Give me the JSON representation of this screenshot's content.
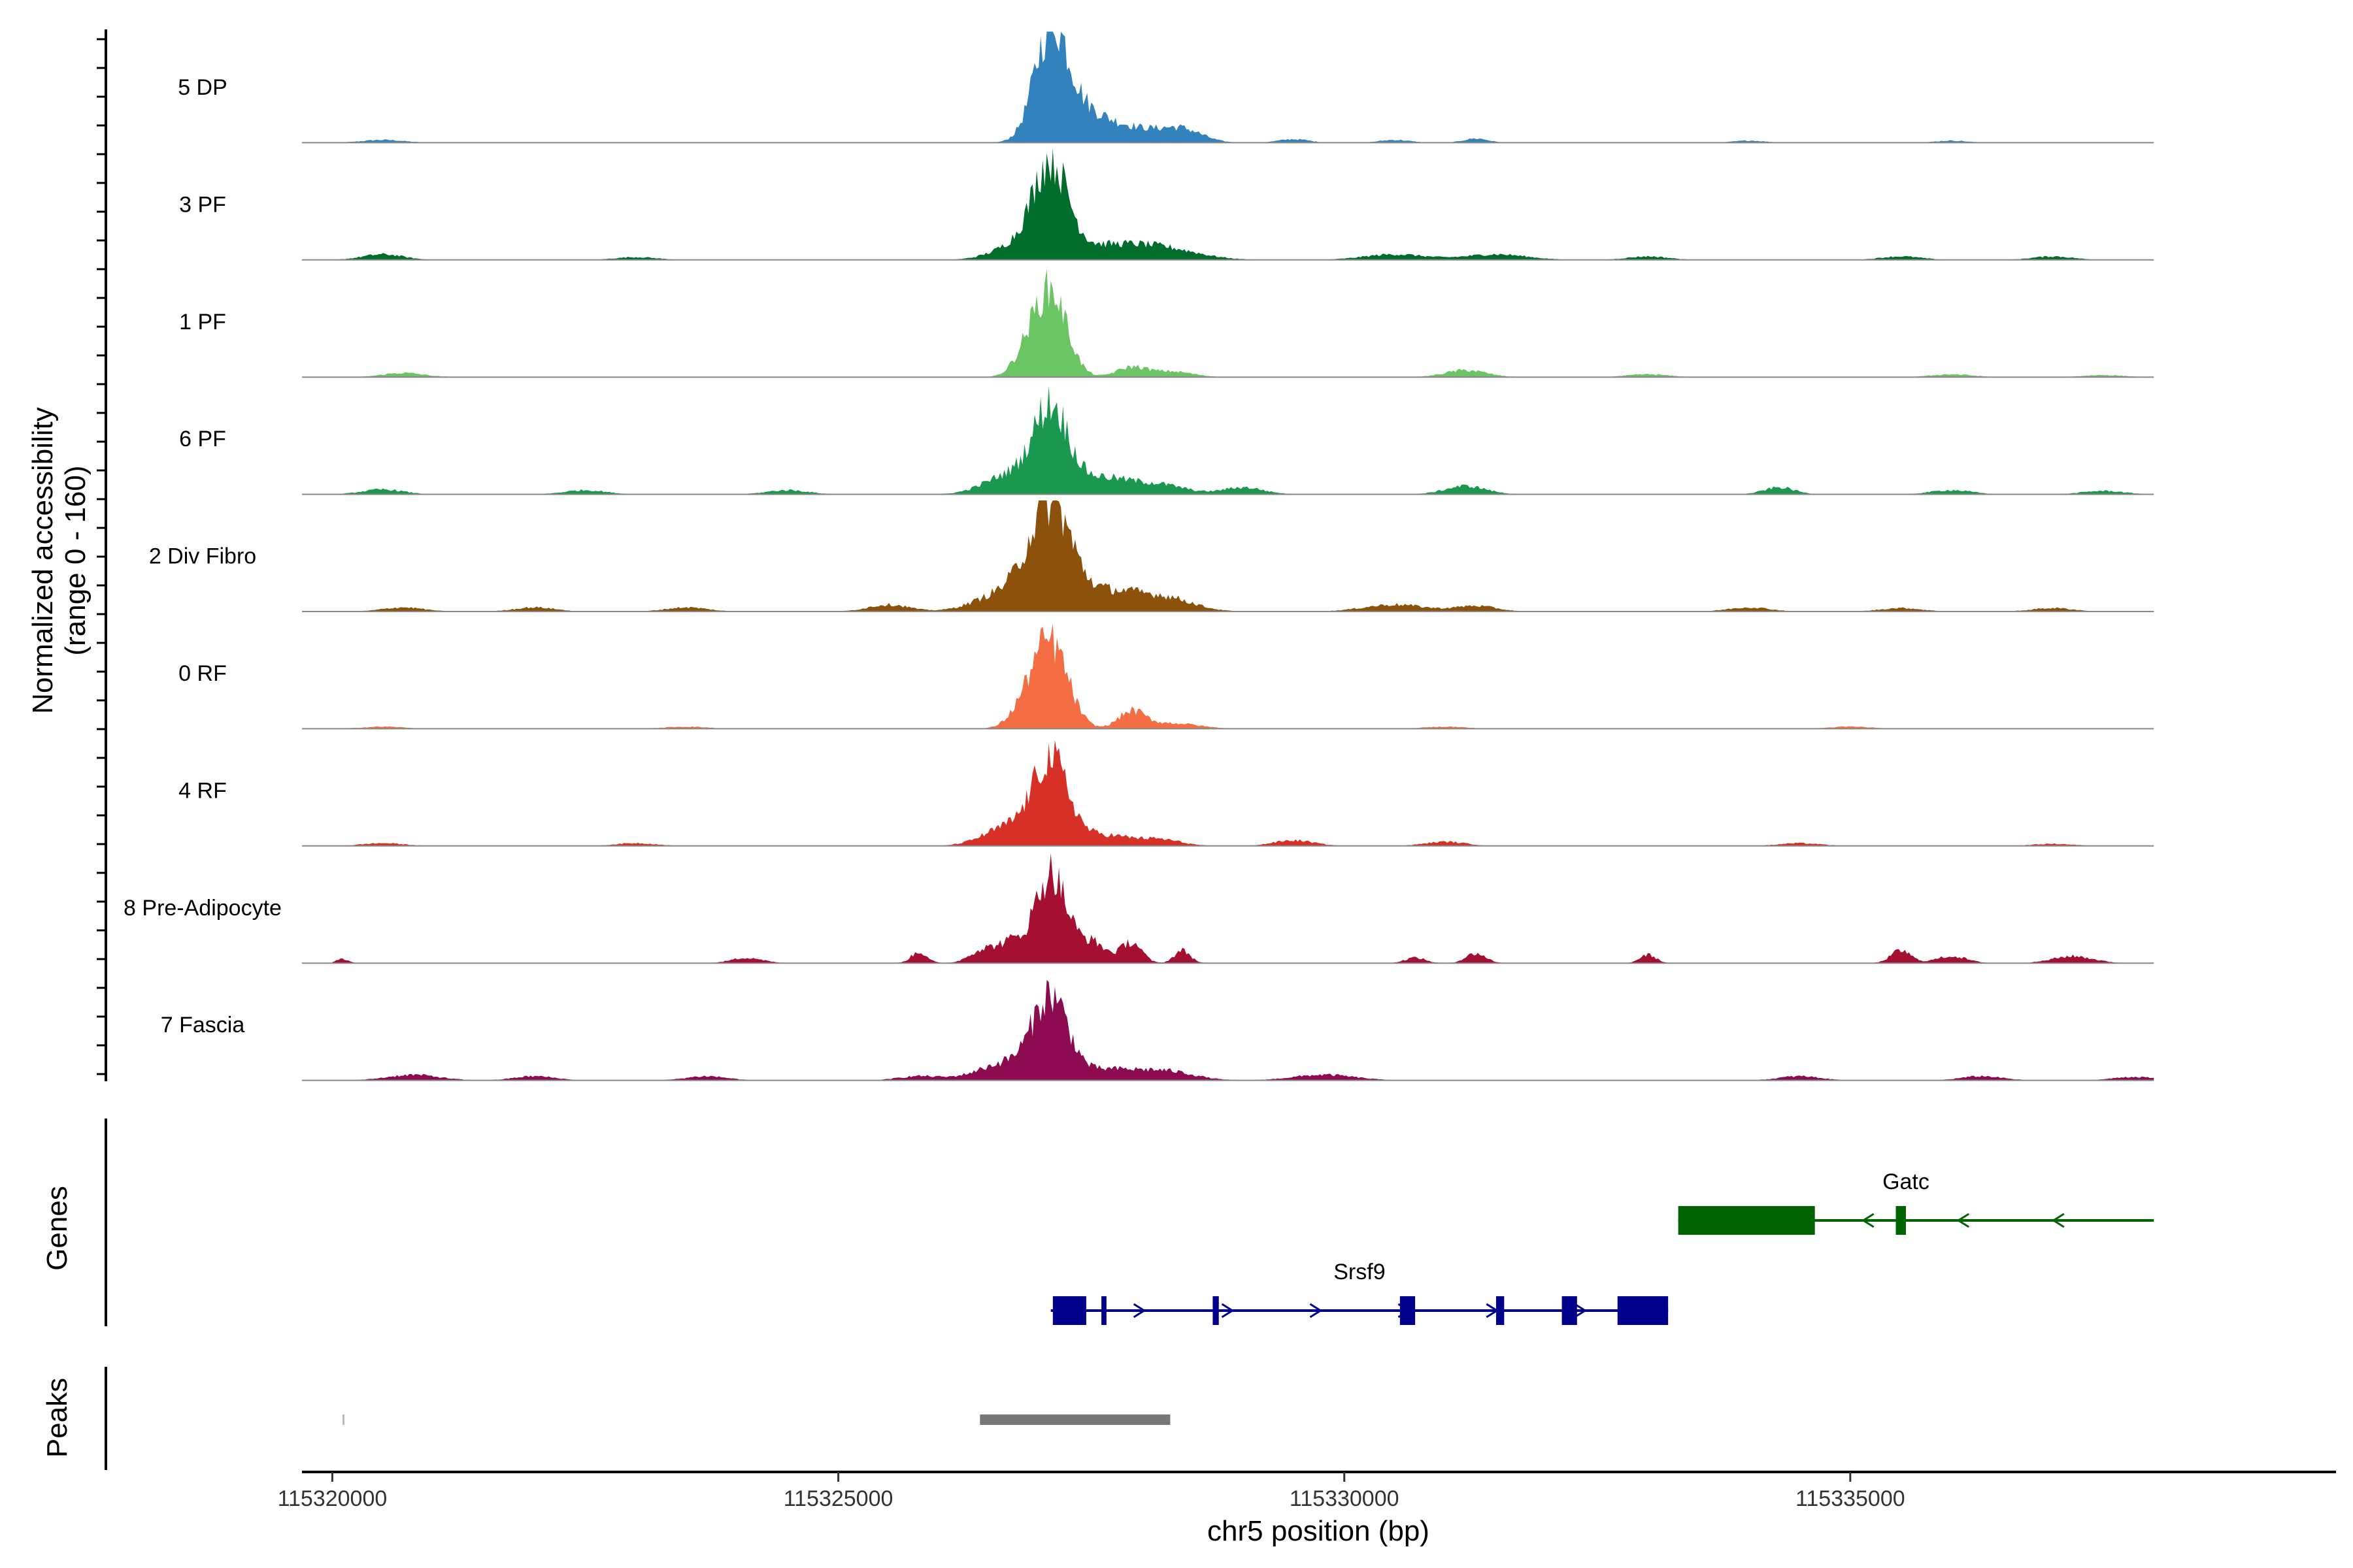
{
  "chart_data": {
    "type": "area",
    "chromosome": "chr5",
    "xlabel": "chr5 position (bp)",
    "ylabel_line1": "Normalized accessibility",
    "ylabel_line2": "(range 0 - 160)",
    "ylim": [
      0,
      160
    ],
    "xlim": [
      115319700,
      115339800
    ],
    "x_ticks": [
      115320000,
      115325000,
      115330000,
      115335000
    ],
    "x_tick_labels": [
      "115320000",
      "115325000",
      "115330000",
      "115335000"
    ],
    "region": [
      115320000,
      115338000
    ],
    "tracks": [
      {
        "name": "5 DP",
        "color": "#3182BD",
        "peaks": [
          [
            115327100,
            148,
            160
          ],
          [
            115327350,
            40,
            250
          ],
          [
            115327700,
            14,
            300
          ],
          [
            115328000,
            10,
            250
          ],
          [
            115328400,
            18,
            200
          ],
          [
            115329500,
            5,
            150
          ],
          [
            115330500,
            4,
            150
          ],
          [
            115331300,
            6,
            120
          ],
          [
            115334000,
            3,
            150
          ],
          [
            115336000,
            3,
            150
          ],
          [
            115320500,
            4,
            200
          ]
        ]
      },
      {
        "name": "3 PF",
        "color": "#006D2C",
        "peaks": [
          [
            115327100,
            128,
            170
          ],
          [
            115326800,
            22,
            250
          ],
          [
            115327600,
            18,
            350
          ],
          [
            115328200,
            16,
            350
          ],
          [
            115320500,
            8,
            200
          ],
          [
            115330500,
            8,
            300
          ],
          [
            115331500,
            8,
            300
          ],
          [
            115333000,
            5,
            200
          ],
          [
            115335500,
            5,
            200
          ],
          [
            115337000,
            5,
            200
          ],
          [
            115323000,
            4,
            200
          ]
        ]
      },
      {
        "name": "1 PF",
        "color": "#6BC565",
        "peaks": [
          [
            115327100,
            122,
            160
          ],
          [
            115326850,
            26,
            130
          ],
          [
            115327900,
            14,
            150
          ],
          [
            115328300,
            8,
            200
          ],
          [
            115320700,
            6,
            200
          ],
          [
            115331200,
            10,
            200
          ],
          [
            115333000,
            4,
            200
          ],
          [
            115336000,
            4,
            200
          ],
          [
            115337500,
            3,
            200
          ]
        ]
      },
      {
        "name": "6 PF",
        "color": "#1A9850",
        "peaks": [
          [
            115327100,
            118,
            170
          ],
          [
            115326700,
            28,
            250
          ],
          [
            115327600,
            24,
            300
          ],
          [
            115328200,
            12,
            250
          ],
          [
            115320500,
            7,
            200
          ],
          [
            115322500,
            6,
            200
          ],
          [
            115324500,
            6,
            200
          ],
          [
            115329000,
            10,
            200
          ],
          [
            115331200,
            12,
            200
          ],
          [
            115334300,
            10,
            150
          ],
          [
            115336000,
            6,
            200
          ],
          [
            115337500,
            5,
            200
          ]
        ]
      },
      {
        "name": "2 Div Fibro",
        "color": "#8C510A",
        "peaks": [
          [
            115327100,
            142,
            200
          ],
          [
            115326700,
            30,
            300
          ],
          [
            115327700,
            30,
            350
          ],
          [
            115328300,
            14,
            250
          ],
          [
            115325500,
            10,
            200
          ],
          [
            115320700,
            6,
            200
          ],
          [
            115322000,
            6,
            200
          ],
          [
            115323500,
            6,
            200
          ],
          [
            115330500,
            10,
            300
          ],
          [
            115331300,
            8,
            200
          ],
          [
            115334000,
            6,
            200
          ],
          [
            115335500,
            5,
            200
          ],
          [
            115337000,
            5,
            200
          ]
        ]
      },
      {
        "name": "0 RF",
        "color": "#F46D43",
        "peaks": [
          [
            115327100,
            120,
            170
          ],
          [
            115326850,
            26,
            150
          ],
          [
            115327900,
            24,
            130
          ],
          [
            115328300,
            8,
            250
          ],
          [
            115320500,
            3,
            200
          ],
          [
            115323500,
            3,
            200
          ],
          [
            115331000,
            3,
            200
          ],
          [
            115335000,
            3,
            200
          ]
        ]
      },
      {
        "name": "4 RF",
        "color": "#D73027",
        "peaks": [
          [
            115327100,
            116,
            170
          ],
          [
            115326700,
            28,
            250
          ],
          [
            115327600,
            16,
            300
          ],
          [
            115328200,
            8,
            200
          ],
          [
            115320500,
            4,
            200
          ],
          [
            115323000,
            4,
            200
          ],
          [
            115329500,
            8,
            200
          ],
          [
            115331000,
            6,
            200
          ],
          [
            115334500,
            4,
            200
          ],
          [
            115337000,
            3,
            200
          ]
        ]
      },
      {
        "name": "8 Pre-Adipocyte",
        "color": "#A50F32",
        "peaks": [
          [
            115327100,
            130,
            150
          ],
          [
            115326700,
            30,
            150
          ],
          [
            115326400,
            16,
            120
          ],
          [
            115327500,
            30,
            150
          ],
          [
            115327900,
            30,
            100
          ],
          [
            115328400,
            18,
            80
          ],
          [
            115325800,
            16,
            80
          ],
          [
            115320100,
            6,
            60
          ],
          [
            115324100,
            8,
            150
          ],
          [
            115330700,
            8,
            100
          ],
          [
            115331300,
            14,
            100
          ],
          [
            115333000,
            12,
            80
          ],
          [
            115335500,
            18,
            100
          ],
          [
            115336000,
            10,
            150
          ],
          [
            115337200,
            10,
            200
          ]
        ]
      },
      {
        "name": "7 Fascia",
        "color": "#8B0A50",
        "peaks": [
          [
            115327100,
            110,
            170
          ],
          [
            115326700,
            26,
            300
          ],
          [
            115327700,
            16,
            350
          ],
          [
            115328300,
            10,
            250
          ],
          [
            115320800,
            8,
            250
          ],
          [
            115322000,
            6,
            200
          ],
          [
            115323700,
            6,
            200
          ],
          [
            115325800,
            6,
            200
          ],
          [
            115329800,
            8,
            300
          ],
          [
            115334500,
            6,
            200
          ],
          [
            115336300,
            6,
            200
          ],
          [
            115337800,
            5,
            200
          ]
        ]
      }
    ],
    "genes": [
      {
        "name": "Srsf9",
        "strand": "+",
        "color": "#00008B",
        "start": 115327100,
        "end": 115333200,
        "exons": [
          [
            115327120,
            115327450
          ],
          [
            115327600,
            115327650
          ],
          [
            115328700,
            115328760
          ],
          [
            115330550,
            115330700
          ],
          [
            115331500,
            115331580
          ],
          [
            115332150,
            115332300
          ],
          [
            115332700,
            115333200
          ]
        ]
      },
      {
        "name": "Gatc",
        "strand": "-",
        "color": "#006400",
        "start": 115333300,
        "end": 115338000,
        "exons": [
          [
            115333300,
            115334650
          ],
          [
            115335450,
            115335550
          ]
        ]
      }
    ],
    "peaks": [
      {
        "start": 115320100,
        "end": 115320120,
        "color": "#BBBBBB"
      },
      {
        "start": 115326400,
        "end": 115328280,
        "color": "#777777"
      }
    ],
    "track_group_labels": {
      "genes": "Genes",
      "peaks": "Peaks"
    }
  }
}
